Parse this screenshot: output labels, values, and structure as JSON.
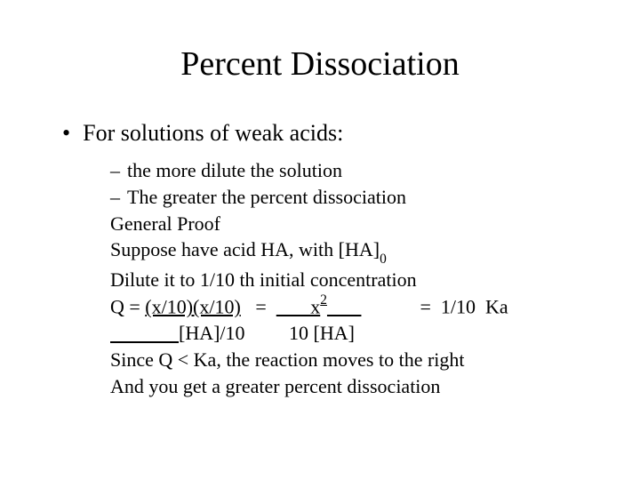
{
  "title": "Percent Dissociation",
  "main_bullet": "For solutions of weak acids:",
  "sub1": "the more dilute the solution",
  "sub2": "The greater the percent dissociation",
  "line1": "General Proof",
  "line2a": "Suppose have acid HA, with [HA]",
  "line2b": "0",
  "line3": "Dilute it to 1/10 th initial concentration",
  "line4_pre": "Q = ",
  "line4_frac1": "(x/10)(x/10)",
  "line4_mid": "   =  ",
  "line4_x": "       x",
  "line4_exp": "2",
  "line4_post": "            =  1/10  Ka",
  "line5_pad": "              ",
  "line5_a": "[HA]/10",
  "line5_gap": "         ",
  "line5_b": "10 [HA]",
  "line6": "Since Q  <  Ka, the reaction moves to the right",
  "line7": "And you get a greater percent dissociation",
  "colors": {
    "background": "#ffffff",
    "text": "#000000"
  },
  "typography": {
    "title_fontsize": 38,
    "bullet_fontsize": 26,
    "sub_fontsize": 22,
    "font_family": "Times New Roman"
  }
}
